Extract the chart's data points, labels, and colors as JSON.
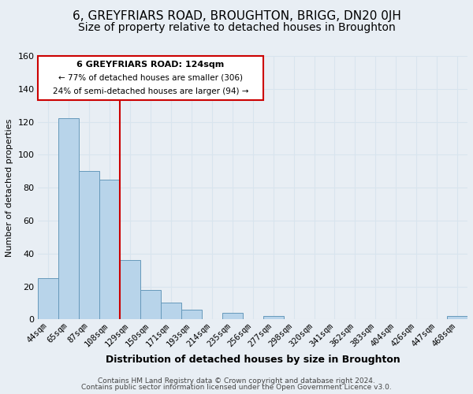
{
  "title": "6, GREYFRIARS ROAD, BROUGHTON, BRIGG, DN20 0JH",
  "subtitle": "Size of property relative to detached houses in Broughton",
  "xlabel": "Distribution of detached houses by size in Broughton",
  "ylabel": "Number of detached properties",
  "categories": [
    "44sqm",
    "65sqm",
    "87sqm",
    "108sqm",
    "129sqm",
    "150sqm",
    "171sqm",
    "193sqm",
    "214sqm",
    "235sqm",
    "256sqm",
    "277sqm",
    "298sqm",
    "320sqm",
    "341sqm",
    "362sqm",
    "383sqm",
    "404sqm",
    "426sqm",
    "447sqm",
    "468sqm"
  ],
  "values": [
    25,
    122,
    90,
    85,
    36,
    18,
    10,
    6,
    0,
    4,
    0,
    2,
    0,
    0,
    0,
    0,
    0,
    0,
    0,
    0,
    2
  ],
  "bar_color": "#b8d4ea",
  "bar_edge_color": "#6699bb",
  "vline_color": "#cc0000",
  "ylim": [
    0,
    160
  ],
  "yticks": [
    0,
    20,
    40,
    60,
    80,
    100,
    120,
    140,
    160
  ],
  "annotation_title": "6 GREYFRIARS ROAD: 124sqm",
  "annotation_line1": "← 77% of detached houses are smaller (306)",
  "annotation_line2": "24% of semi-detached houses are larger (94) →",
  "annotation_box_color": "#cc0000",
  "footer_line1": "Contains HM Land Registry data © Crown copyright and database right 2024.",
  "footer_line2": "Contains public sector information licensed under the Open Government Licence v3.0.",
  "background_color": "#e8eef4",
  "grid_color": "#d8e4ee",
  "title_fontsize": 11,
  "subtitle_fontsize": 10,
  "xlabel_fontsize": 9,
  "ylabel_fontsize": 8
}
